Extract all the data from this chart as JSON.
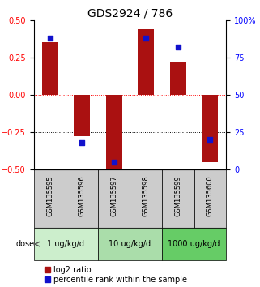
{
  "title": "GDS2924 / 786",
  "samples": [
    "GSM135595",
    "GSM135596",
    "GSM135597",
    "GSM135598",
    "GSM135599",
    "GSM135600"
  ],
  "log2_ratios": [
    0.35,
    -0.28,
    -0.52,
    0.44,
    0.22,
    -0.45
  ],
  "percentile_ranks": [
    88,
    18,
    5,
    88,
    82,
    20
  ],
  "dose_groups": [
    {
      "label": "1 ug/kg/d",
      "cols": [
        0,
        1
      ],
      "color": "#cceecc"
    },
    {
      "label": "10 ug/kg/d",
      "cols": [
        2,
        3
      ],
      "color": "#aaddaa"
    },
    {
      "label": "1000 ug/kg/d",
      "cols": [
        4,
        5
      ],
      "color": "#66cc66"
    }
  ],
  "bar_color": "#aa1111",
  "dot_color": "#1111cc",
  "ylim_left": [
    -0.5,
    0.5
  ],
  "ylim_right": [
    0,
    100
  ],
  "yticks_left": [
    -0.5,
    -0.25,
    0.0,
    0.25,
    0.5
  ],
  "yticks_right": [
    0,
    25,
    50,
    75,
    100
  ],
  "ytick_labels_right": [
    "0",
    "25",
    "50",
    "75",
    "100%"
  ],
  "dotted_lines_black": [
    -0.25,
    0.25
  ],
  "dotted_line_red": 0.0,
  "label_log2": "log2 ratio",
  "label_pct": "percentile rank within the sample",
  "dose_label": "dose",
  "sample_box_color": "#cccccc",
  "title_fontsize": 10,
  "tick_fontsize": 7,
  "legend_fontsize": 7,
  "bar_width": 0.5
}
